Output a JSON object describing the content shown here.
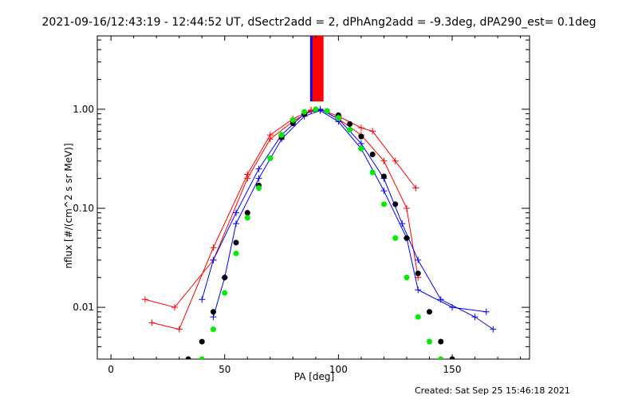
{
  "chart_data": {
    "type": "line",
    "title": "2021-09-16/12:43:19 - 12:44:52 UT, dSectr2add = 2, dPhAng2add = -9.3deg, dPA290_est=  0.1deg",
    "xlabel": "PA [deg]",
    "ylabel": "nflux [#/(cm^2 s sr MeV)]",
    "xlim": [
      -6,
      184
    ],
    "ylim": [
      0.003,
      5.5
    ],
    "yscale": "log",
    "x_ticks": [
      0,
      50,
      100,
      150
    ],
    "x_tick_labels": [
      "0",
      "50",
      "100",
      "150"
    ],
    "y_ticks": [
      0.01,
      0.1,
      1.0
    ],
    "y_tick_labels": [
      "0.01",
      "0.10",
      "1.00"
    ],
    "footer": "Created: Sat Sep 25 15:46:18 2021",
    "colors": {
      "red": "#ff0000",
      "blue": "#0000ff",
      "black": "#000000",
      "green": "#00ee00"
    },
    "series": [
      {
        "color": "red",
        "style": "line-plus",
        "x": [
          15,
          28,
          45,
          60,
          70,
          80,
          88,
          92,
          100,
          110,
          120,
          130,
          135
        ],
        "y": [
          0.012,
          0.01,
          0.03,
          0.2,
          0.5,
          0.75,
          0.97,
          1.0,
          0.8,
          0.55,
          0.3,
          0.1,
          0.02
        ]
      },
      {
        "color": "red",
        "style": "line-plus",
        "x": [
          18,
          30,
          45,
          60,
          70,
          80,
          88,
          92,
          100,
          110,
          115,
          125,
          134
        ],
        "y": [
          0.007,
          0.006,
          0.04,
          0.22,
          0.55,
          0.8,
          0.98,
          0.99,
          0.85,
          0.65,
          0.6,
          0.3,
          0.16
        ]
      },
      {
        "color": "blue",
        "style": "line-plus",
        "x": [
          40,
          45,
          55,
          65,
          75,
          85,
          92,
          100,
          110,
          120,
          128,
          135,
          145,
          160,
          168
        ],
        "y": [
          0.012,
          0.03,
          0.09,
          0.25,
          0.55,
          0.9,
          1.0,
          0.8,
          0.45,
          0.2,
          0.07,
          0.03,
          0.012,
          0.008,
          0.006
        ]
      },
      {
        "color": "blue",
        "style": "line-plus",
        "x": [
          45,
          50,
          55,
          65,
          75,
          85,
          92,
          100,
          110,
          120,
          130,
          135,
          150,
          165
        ],
        "y": [
          0.008,
          0.02,
          0.07,
          0.2,
          0.5,
          0.85,
          0.97,
          0.75,
          0.4,
          0.15,
          0.05,
          0.015,
          0.01,
          0.009
        ]
      },
      {
        "color": "black",
        "style": "dots",
        "x": [
          34,
          40,
          45,
          50,
          55,
          60,
          65,
          70,
          75,
          80,
          85,
          90,
          95,
          100,
          105,
          110,
          115,
          120,
          125,
          130,
          135,
          140,
          145,
          150
        ],
        "y": [
          0.003,
          0.0045,
          0.009,
          0.02,
          0.045,
          0.09,
          0.17,
          0.32,
          0.52,
          0.72,
          0.89,
          0.99,
          0.96,
          0.87,
          0.71,
          0.53,
          0.35,
          0.21,
          0.11,
          0.05,
          0.022,
          0.009,
          0.0045,
          0.003
        ]
      },
      {
        "color": "green",
        "style": "dots",
        "x": [
          40,
          45,
          50,
          55,
          60,
          65,
          70,
          75,
          80,
          85,
          90,
          95,
          100,
          105,
          110,
          115,
          120,
          125,
          130,
          135,
          140,
          145
        ],
        "y": [
          0.003,
          0.006,
          0.014,
          0.035,
          0.08,
          0.16,
          0.32,
          0.55,
          0.78,
          0.94,
          1.0,
          0.96,
          0.82,
          0.62,
          0.4,
          0.23,
          0.11,
          0.05,
          0.02,
          0.008,
          0.0045,
          0.003
        ]
      }
    ],
    "vertical_bars": [
      {
        "x": 90,
        "color": "blue",
        "y_from": 1.2,
        "y_to": 5.5
      },
      {
        "x": 91,
        "color": "red",
        "y_from": 1.2,
        "y_to": 5.5
      }
    ]
  }
}
